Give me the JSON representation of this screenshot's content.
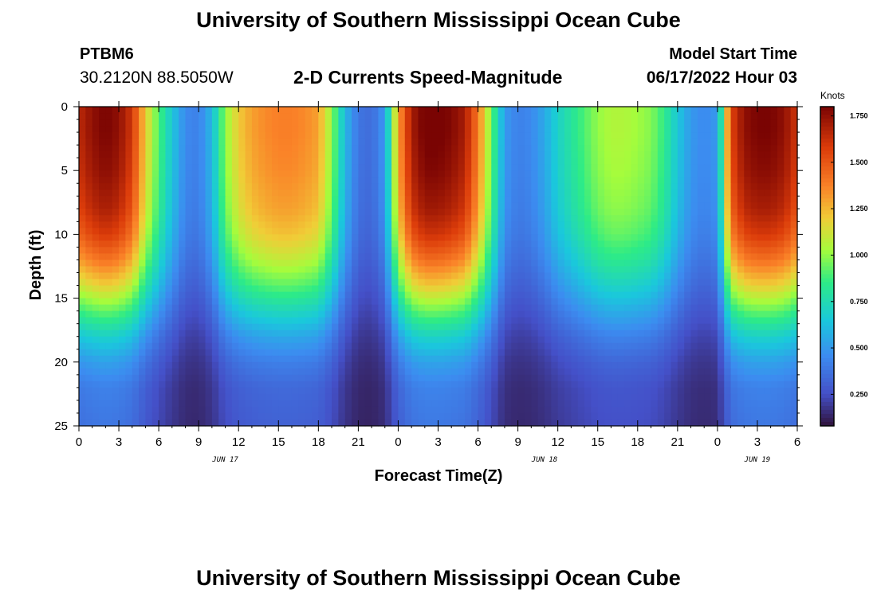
{
  "header": {
    "title": "University of Southern Mississippi Ocean Cube",
    "station": "PTBM6",
    "coords": "30.2120N  88.5050W",
    "product": "2-D Currents Speed-Magnitude",
    "model_start_label": "Model Start Time",
    "model_start_value": "06/17/2022 Hour 03"
  },
  "footer": {
    "title": "University of Southern Mississippi Ocean Cube"
  },
  "chart_data": {
    "type": "heatmap",
    "title": "2-D Currents Speed-Magnitude",
    "xlabel": "Forecast Time(Z)",
    "ylabel": "Depth (ft)",
    "x_range_hours": [
      0,
      54
    ],
    "y_range_ft": [
      0,
      25
    ],
    "y_inverted": true,
    "x_ticks": [
      "0",
      "3",
      "6",
      "9",
      "12",
      "15",
      "18",
      "21",
      "0",
      "3",
      "6",
      "9",
      "12",
      "15",
      "18",
      "21",
      "0",
      "3",
      "6"
    ],
    "x_tick_hours": [
      0,
      3,
      6,
      9,
      12,
      15,
      18,
      21,
      24,
      27,
      30,
      33,
      36,
      39,
      42,
      45,
      48,
      51,
      54
    ],
    "y_ticks": [
      0,
      5,
      10,
      15,
      20,
      25
    ],
    "date_labels": [
      {
        "text": "JUN 17",
        "hour": 11
      },
      {
        "text": "JUN 18",
        "hour": 35
      },
      {
        "text": "JUN 19",
        "hour": 51
      }
    ],
    "colorbar": {
      "label": "Knots",
      "range": [
        0.08,
        1.8
      ],
      "ticks": [
        "0.250",
        "0.500",
        "0.750",
        "1.000",
        "1.250",
        "1.500",
        "1.750"
      ],
      "tick_values": [
        0.25,
        0.5,
        0.75,
        1.0,
        1.25,
        1.5,
        1.75
      ]
    },
    "surface_speed_by_hour": [
      [
        0,
        1.65
      ],
      [
        1,
        1.75
      ],
      [
        2,
        1.8
      ],
      [
        3,
        1.75
      ],
      [
        4,
        1.6
      ],
      [
        5,
        1.2
      ],
      [
        6,
        0.9
      ],
      [
        7,
        0.65
      ],
      [
        8,
        0.45
      ],
      [
        9,
        0.42
      ],
      [
        10,
        0.6
      ],
      [
        11,
        1.0
      ],
      [
        12,
        1.2
      ],
      [
        13,
        1.3
      ],
      [
        14,
        1.35
      ],
      [
        15,
        1.38
      ],
      [
        16,
        1.38
      ],
      [
        17,
        1.35
      ],
      [
        18,
        1.3
      ],
      [
        19,
        1.0
      ],
      [
        20,
        0.6
      ],
      [
        21,
        0.38
      ],
      [
        22,
        0.35
      ],
      [
        23,
        0.5
      ],
      [
        24,
        1.3
      ],
      [
        25,
        1.7
      ],
      [
        26,
        1.82
      ],
      [
        27,
        1.82
      ],
      [
        28,
        1.78
      ],
      [
        29,
        1.7
      ],
      [
        30,
        1.4
      ],
      [
        31,
        0.95
      ],
      [
        32,
        0.5
      ],
      [
        33,
        0.42
      ],
      [
        34,
        0.45
      ],
      [
        35,
        0.55
      ],
      [
        36,
        0.7
      ],
      [
        37,
        0.8
      ],
      [
        38,
        0.9
      ],
      [
        39,
        1.0
      ],
      [
        40,
        1.05
      ],
      [
        41,
        1.05
      ],
      [
        42,
        1.02
      ],
      [
        43,
        0.98
      ],
      [
        44,
        0.85
      ],
      [
        45,
        0.65
      ],
      [
        46,
        0.5
      ],
      [
        47,
        0.45
      ],
      [
        48,
        0.5
      ],
      [
        49,
        1.55
      ],
      [
        50,
        1.75
      ],
      [
        51,
        1.8
      ],
      [
        52,
        1.8
      ],
      [
        53,
        1.75
      ],
      [
        54,
        1.6
      ]
    ],
    "depth_profile": [
      [
        0,
        1.0
      ],
      [
        2,
        1.0
      ],
      [
        5,
        0.98
      ],
      [
        8,
        0.94
      ],
      [
        10,
        0.88
      ],
      [
        12,
        0.78
      ],
      [
        14,
        0.65
      ],
      [
        16,
        0.5
      ],
      [
        18,
        0.36
      ],
      [
        20,
        0.26
      ],
      [
        22,
        0.2
      ],
      [
        25,
        0.18
      ]
    ]
  }
}
